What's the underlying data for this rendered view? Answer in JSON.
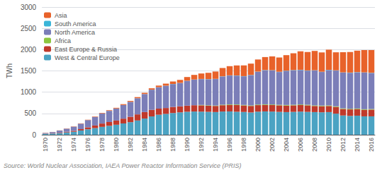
{
  "chart_data": {
    "type": "bar",
    "stacked": true,
    "categories": [
      1970,
      null,
      1972,
      null,
      1974,
      null,
      1976,
      null,
      1978,
      null,
      1980,
      null,
      1982,
      null,
      1984,
      null,
      1986,
      null,
      1988,
      null,
      1990,
      null,
      1992,
      null,
      1994,
      null,
      1996,
      null,
      1998,
      null,
      2000,
      null,
      2002,
      null,
      2004,
      null,
      2006,
      null,
      2008,
      null,
      2010,
      null,
      2012,
      null,
      2014,
      null,
      2016
    ],
    "series": [
      {
        "name": "West & Central Europe",
        "color": "#4ba3c3",
        "values": [
          20,
          28,
          40,
          55,
          70,
          100,
          130,
          155,
          185,
          210,
          235,
          265,
          295,
          335,
          380,
          430,
          470,
          490,
          510,
          525,
          540,
          545,
          542,
          538,
          533,
          545,
          548,
          540,
          535,
          523,
          542,
          548,
          544,
          537,
          532,
          537,
          543,
          537,
          532,
          527,
          532,
          495,
          452,
          442,
          448,
          432,
          432
        ]
      },
      {
        "name": "East Europe & Russia",
        "color": "#c0392b",
        "values": [
          5,
          7,
          10,
          15,
          22,
          32,
          46,
          62,
          78,
          88,
          98,
          113,
          128,
          143,
          153,
          155,
          143,
          138,
          143,
          143,
          143,
          148,
          148,
          143,
          143,
          148,
          153,
          158,
          153,
          153,
          153,
          153,
          153,
          153,
          153,
          153,
          153,
          153,
          143,
          143,
          143,
          158,
          153,
          153,
          153,
          153,
          158
        ]
      },
      {
        "name": "Africa",
        "color": "#8dc63f",
        "values": [
          0,
          0,
          0,
          0,
          0,
          0,
          0,
          0,
          0,
          0,
          0,
          0,
          0,
          0,
          0,
          0,
          0,
          0,
          0,
          0,
          0,
          0,
          10,
          10,
          10,
          12,
          12,
          12,
          12,
          12,
          13,
          13,
          13,
          13,
          14,
          14,
          14,
          14,
          14,
          14,
          14,
          14,
          14,
          14,
          14,
          14,
          14
        ]
      },
      {
        "name": "North America",
        "color": "#7b7eb8",
        "values": [
          18,
          28,
          48,
          72,
          98,
          128,
          168,
          202,
          238,
          262,
          282,
          318,
          348,
          378,
          422,
          472,
          502,
          522,
          537,
          547,
          582,
          602,
          607,
          612,
          622,
          662,
          677,
          677,
          672,
          712,
          770,
          800,
          800,
          770,
          800,
          810,
          810,
          800,
          820,
          790,
          830,
          840,
          840,
          845,
          850,
          860,
          845
        ]
      },
      {
        "name": "South America",
        "color": "#3ab5d8",
        "values": [
          0,
          0,
          0,
          0,
          0,
          0,
          0,
          0,
          0,
          2,
          2,
          2,
          2,
          2,
          2,
          2,
          2,
          3,
          3,
          3,
          3,
          3,
          4,
          4,
          5,
          5,
          5,
          5,
          5,
          5,
          5,
          6,
          6,
          6,
          6,
          6,
          6,
          6,
          6,
          6,
          6,
          6,
          6,
          6,
          6,
          6,
          6
        ]
      },
      {
        "name": "Asia",
        "color": "#e8622a",
        "values": [
          2,
          3,
          4,
          5,
          6,
          7,
          8,
          10,
          12,
          14,
          16,
          20,
          22,
          26,
          28,
          32,
          38,
          48,
          58,
          72,
          88,
          108,
          128,
          148,
          172,
          196,
          216,
          236,
          252,
          266,
          285,
          305,
          325,
          336,
          365,
          394,
          434,
          434,
          454,
          454,
          474,
          424,
          474,
          484,
          504,
          524,
          534
        ]
      }
    ],
    "ylabel": "TWh",
    "ylim": [
      0,
      3000
    ],
    "yticks": [
      0,
      500,
      1000,
      1500,
      2000,
      2500,
      3000
    ],
    "grid": true,
    "legend": "upper left",
    "annotation": "Source: World Nuclear Association, IAEA Power Reactor Information Service (PRIS)"
  }
}
